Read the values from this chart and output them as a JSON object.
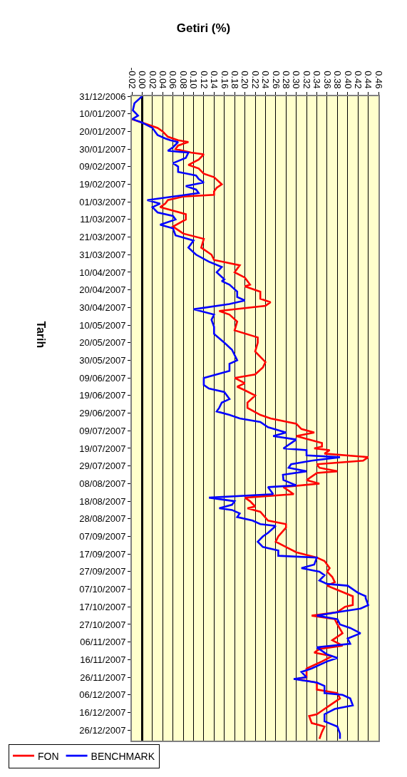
{
  "chart_data": {
    "type": "line",
    "title": "Getiri (%)",
    "ylabel": "Tarih",
    "orientation": "horizontal",
    "grid": "x",
    "legend": "bottom left",
    "marker": "none",
    "line_style": "solid",
    "xlim": [
      -0.02,
      0.46
    ],
    "xticks": [
      {
        "value": -0.02,
        "label": "-0.02"
      },
      {
        "value": 0,
        "label": "0.00"
      },
      {
        "value": 0.02,
        "label": "0.02"
      },
      {
        "value": 0.04,
        "label": "0.04"
      },
      {
        "value": 0.06,
        "label": "0.06"
      },
      {
        "value": 0.08,
        "label": "0.08"
      },
      {
        "value": 0.1,
        "label": "0.10"
      },
      {
        "value": 0.12,
        "label": "0.12"
      },
      {
        "value": 0.14,
        "label": "0.14"
      },
      {
        "value": 0.16,
        "label": "0.16"
      },
      {
        "value": 0.18,
        "label": "0.18"
      },
      {
        "value": 0.2,
        "label": "0.20"
      },
      {
        "value": 0.22,
        "label": "0.22"
      },
      {
        "value": 0.24,
        "label": "0.24"
      },
      {
        "value": 0.26,
        "label": "0.26"
      },
      {
        "value": 0.28,
        "label": "0.28"
      },
      {
        "value": 0.3,
        "label": "0.30"
      },
      {
        "value": 0.32,
        "label": "0.32"
      },
      {
        "value": 0.34,
        "label": "0.34"
      },
      {
        "value": 0.36,
        "label": "0.36"
      },
      {
        "value": 0.38,
        "label": "0.38"
      },
      {
        "value": 0.4,
        "label": "0.40"
      },
      {
        "value": 0.42,
        "label": "0.42"
      },
      {
        "value": 0.44,
        "label": "0.44"
      },
      {
        "value": 0.46,
        "label": "0.46"
      }
    ],
    "ylim": [
      "2008-01-01",
      "2006-12-31"
    ],
    "yticks": [
      {
        "value": "2006-12-31",
        "label": "31/12/2006"
      },
      {
        "value": "2007-01-10",
        "label": "10/01/2007"
      },
      {
        "value": "2007-01-20",
        "label": "20/01/2007"
      },
      {
        "value": "2007-01-30",
        "label": "30/01/2007"
      },
      {
        "value": "2007-02-09",
        "label": "09/02/2007"
      },
      {
        "value": "2007-02-19",
        "label": "19/02/2007"
      },
      {
        "value": "2007-03-01",
        "label": "01/03/2007"
      },
      {
        "value": "2007-03-11",
        "label": "11/03/2007"
      },
      {
        "value": "2007-03-21",
        "label": "21/03/2007"
      },
      {
        "value": "2007-03-31",
        "label": "31/03/2007"
      },
      {
        "value": "2007-04-10",
        "label": "10/04/2007"
      },
      {
        "value": "2007-04-20",
        "label": "20/04/2007"
      },
      {
        "value": "2007-04-30",
        "label": "30/04/2007"
      },
      {
        "value": "2007-05-10",
        "label": "10/05/2007"
      },
      {
        "value": "2007-05-20",
        "label": "20/05/2007"
      },
      {
        "value": "2007-05-30",
        "label": "30/05/2007"
      },
      {
        "value": "2007-06-09",
        "label": "09/06/2007"
      },
      {
        "value": "2007-06-19",
        "label": "19/06/2007"
      },
      {
        "value": "2007-06-29",
        "label": "29/06/2007"
      },
      {
        "value": "2007-07-09",
        "label": "09/07/2007"
      },
      {
        "value": "2007-07-19",
        "label": "19/07/2007"
      },
      {
        "value": "2007-07-29",
        "label": "29/07/2007"
      },
      {
        "value": "2007-08-08",
        "label": "08/08/2007"
      },
      {
        "value": "2007-08-18",
        "label": "18/08/2007"
      },
      {
        "value": "2007-08-28",
        "label": "28/08/2007"
      },
      {
        "value": "2007-09-07",
        "label": "07/09/2007"
      },
      {
        "value": "2007-09-17",
        "label": "17/09/2007"
      },
      {
        "value": "2007-09-27",
        "label": "27/09/2007"
      },
      {
        "value": "2007-10-07",
        "label": "07/10/2007"
      },
      {
        "value": "2007-10-17",
        "label": "17/10/2007"
      },
      {
        "value": "2007-10-27",
        "label": "27/10/2007"
      },
      {
        "value": "2007-11-06",
        "label": "06/11/2007"
      },
      {
        "value": "2007-11-16",
        "label": "16/11/2007"
      },
      {
        "value": "2007-11-26",
        "label": "26/11/2007"
      },
      {
        "value": "2007-12-06",
        "label": "06/12/2007"
      },
      {
        "value": "2007-12-16",
        "label": "16/12/2007"
      },
      {
        "value": "2007-12-26",
        "label": "26/12/2007"
      }
    ],
    "series": [
      {
        "name": "FON",
        "color": "#ff0000",
        "x": [
          "2007-01-13",
          "2007-01-15",
          "2007-01-18",
          "2007-01-20",
          "2007-01-23",
          "2007-01-25",
          "2007-01-26",
          "2007-01-28",
          "2007-01-30",
          "2007-02-01",
          "2007-02-02",
          "2007-02-05",
          "2007-02-08",
          "2007-02-10",
          "2007-02-13",
          "2007-02-15",
          "2007-02-19",
          "2007-02-21",
          "2007-02-23",
          "2007-02-25",
          "2007-02-26",
          "2007-02-28",
          "2007-03-02",
          "2007-03-04",
          "2007-03-06",
          "2007-03-08",
          "2007-03-11",
          "2007-03-15",
          "2007-03-19",
          "2007-03-22",
          "2007-03-27",
          "2007-03-31",
          "2007-04-03",
          "2007-04-06",
          "2007-04-10",
          "2007-04-13",
          "2007-04-17",
          "2007-04-18",
          "2007-04-21",
          "2007-04-25",
          "2007-04-27",
          "2007-04-29",
          "2007-05-02",
          "2007-05-04",
          "2007-05-08",
          "2007-05-13",
          "2007-05-17",
          "2007-05-20",
          "2007-05-25",
          "2007-05-31",
          "2007-06-03",
          "2007-06-07",
          "2007-06-09",
          "2007-06-12",
          "2007-06-14",
          "2007-06-16",
          "2007-06-19",
          "2007-06-23",
          "2007-06-26",
          "2007-06-30",
          "2007-07-02",
          "2007-07-05",
          "2007-07-08",
          "2007-07-10",
          "2007-07-12",
          "2007-07-16",
          "2007-07-18",
          "2007-07-19",
          "2007-07-20",
          "2007-07-22",
          "2007-07-24",
          "2007-07-26",
          "2007-07-28",
          "2007-07-30",
          "2007-08-01",
          "2007-08-02",
          "2007-08-06",
          "2007-08-08",
          "2007-08-10",
          "2007-08-14",
          "2007-08-16",
          "2007-08-18",
          "2007-08-21",
          "2007-08-22",
          "2007-08-24",
          "2007-08-29",
          "2007-08-31",
          "2007-09-02",
          "2007-09-07",
          "2007-09-10",
          "2007-09-13",
          "2007-09-16",
          "2007-09-19",
          "2007-09-21",
          "2007-09-25",
          "2007-09-27",
          "2007-09-30",
          "2007-10-03",
          "2007-10-05",
          "2007-10-08",
          "2007-10-11",
          "2007-10-12",
          "2007-10-16",
          "2007-10-17",
          "2007-10-20",
          "2007-10-22",
          "2007-10-24",
          "2007-10-27",
          "2007-11-01",
          "2007-11-05",
          "2007-11-08",
          "2007-11-10",
          "2007-11-12",
          "2007-11-14",
          "2007-11-17",
          "2007-11-21",
          "2007-11-23",
          "2007-11-26",
          "2007-11-27",
          "2007-11-29",
          "2007-12-03",
          "2007-12-05",
          "2007-12-08",
          "2007-12-12",
          "2007-12-15",
          "2007-12-17",
          "2007-12-18",
          "2007-12-22",
          "2007-12-24",
          "2007-12-27",
          "2007-12-31"
        ],
        "values": [
          -0.02,
          0.0,
          0.03,
          0.04,
          0.05,
          0.07,
          0.09,
          0.07,
          0.065,
          0.095,
          0.12,
          0.11,
          0.09,
          0.11,
          0.12,
          0.14,
          0.155,
          0.145,
          0.14,
          0.14,
          0.08,
          0.05,
          0.045,
          0.035,
          0.06,
          0.085,
          0.085,
          0.06,
          0.08,
          0.12,
          0.115,
          0.135,
          0.14,
          0.19,
          0.18,
          0.2,
          0.21,
          0.2,
          0.23,
          0.23,
          0.25,
          0.24,
          0.15,
          0.17,
          0.185,
          0.18,
          0.225,
          0.225,
          0.22,
          0.24,
          0.235,
          0.22,
          0.18,
          0.2,
          0.185,
          0.2,
          0.22,
          0.205,
          0.205,
          0.23,
          0.25,
          0.3,
          0.31,
          0.335,
          0.3,
          0.35,
          0.35,
          0.335,
          0.365,
          0.355,
          0.44,
          0.43,
          0.34,
          0.345,
          0.38,
          0.34,
          0.32,
          0.345,
          0.275,
          0.295,
          0.2,
          0.21,
          0.22,
          0.205,
          0.23,
          0.245,
          0.28,
          0.28,
          0.265,
          0.26,
          0.28,
          0.3,
          0.34,
          0.355,
          0.365,
          0.36,
          0.37,
          0.375,
          0.36,
          0.385,
          0.41,
          0.41,
          0.41,
          0.395,
          0.38,
          0.33,
          0.375,
          0.38,
          0.39,
          0.37,
          0.39,
          0.345,
          0.335,
          0.37,
          0.35,
          0.32,
          0.32,
          0.32,
          0.3,
          0.34,
          0.34,
          0.38,
          0.385,
          0.365,
          0.35,
          0.34,
          0.325,
          0.33,
          0.355,
          0.35,
          0.345
        ]
      },
      {
        "name": "BENCHMARK",
        "color": "#0000ff",
        "x": [
          "2006-12-31",
          "2007-01-04",
          "2007-01-08",
          "2007-01-11",
          "2007-01-13",
          "2007-01-15",
          "2007-01-18",
          "2007-01-20",
          "2007-01-22",
          "2007-01-24",
          "2007-01-25",
          "2007-01-26",
          "2007-01-29",
          "2007-01-31",
          "2007-02-01",
          "2007-02-04",
          "2007-02-07",
          "2007-02-09",
          "2007-02-12",
          "2007-02-14",
          "2007-02-16",
          "2007-02-18",
          "2007-02-20",
          "2007-02-22",
          "2007-02-24",
          "2007-02-26",
          "2007-02-28",
          "2007-03-02",
          "2007-03-04",
          "2007-03-07",
          "2007-03-09",
          "2007-03-11",
          "2007-03-14",
          "2007-03-16",
          "2007-03-20",
          "2007-03-23",
          "2007-03-27",
          "2007-03-31",
          "2007-04-04",
          "2007-04-07",
          "2007-04-10",
          "2007-04-14",
          "2007-04-15",
          "2007-04-17",
          "2007-04-21",
          "2007-04-24",
          "2007-04-26",
          "2007-04-28",
          "2007-05-01",
          "2007-05-04",
          "2007-05-07",
          "2007-05-11",
          "2007-05-15",
          "2007-05-20",
          "2007-05-24",
          "2007-05-30",
          "2007-06-01",
          "2007-06-05",
          "2007-06-09",
          "2007-06-13",
          "2007-06-15",
          "2007-06-17",
          "2007-06-21",
          "2007-06-23",
          "2007-06-26",
          "2007-06-28",
          "2007-06-30",
          "2007-07-02",
          "2007-07-04",
          "2007-07-07",
          "2007-07-10",
          "2007-07-12",
          "2007-07-14",
          "2007-07-19",
          "2007-07-20",
          "2007-07-23",
          "2007-07-24",
          "2007-07-26",
          "2007-07-28",
          "2007-07-30",
          "2007-08-01",
          "2007-08-03",
          "2007-08-06",
          "2007-08-09",
          "2007-08-10",
          "2007-08-14",
          "2007-08-16",
          "2007-08-18",
          "2007-08-20",
          "2007-08-22",
          "2007-08-23",
          "2007-08-25",
          "2007-08-27",
          "2007-08-29",
          "2007-08-31",
          "2007-09-01",
          "2007-09-05",
          "2007-09-07",
          "2007-09-10",
          "2007-09-13",
          "2007-09-15",
          "2007-09-18",
          "2007-09-19",
          "2007-09-23",
          "2007-09-25",
          "2007-09-27",
          "2007-09-29",
          "2007-10-02",
          "2007-10-04",
          "2007-10-05",
          "2007-10-09",
          "2007-10-11",
          "2007-10-12",
          "2007-10-16",
          "2007-10-18",
          "2007-10-20",
          "2007-10-22",
          "2007-10-24",
          "2007-10-27",
          "2007-10-29",
          "2007-11-01",
          "2007-11-04",
          "2007-11-07",
          "2007-11-09",
          "2007-11-13",
          "2007-11-15",
          "2007-11-17",
          "2007-11-21",
          "2007-11-23",
          "2007-11-26",
          "2007-11-27",
          "2007-11-29",
          "2007-12-01",
          "2007-12-05",
          "2007-12-06",
          "2007-12-08",
          "2007-12-12",
          "2007-12-14",
          "2007-12-17",
          "2007-12-21",
          "2007-12-24",
          "2007-12-28",
          "2007-12-31"
        ],
        "values": [
          0.0,
          -0.015,
          -0.018,
          -0.008,
          -0.019,
          0.0,
          0.02,
          0.025,
          0.03,
          0.045,
          0.055,
          0.07,
          0.06,
          0.05,
          0.09,
          0.085,
          0.06,
          0.07,
          0.07,
          0.105,
          0.11,
          0.12,
          0.085,
          0.105,
          0.11,
          0.06,
          0.01,
          0.035,
          0.02,
          0.03,
          0.06,
          0.065,
          0.035,
          0.06,
          0.065,
          0.1,
          0.09,
          0.105,
          0.13,
          0.155,
          0.145,
          0.16,
          0.155,
          0.17,
          0.185,
          0.185,
          0.2,
          0.17,
          0.1,
          0.14,
          0.135,
          0.14,
          0.14,
          0.16,
          0.175,
          0.185,
          0.17,
          0.17,
          0.12,
          0.12,
          0.13,
          0.16,
          0.17,
          0.155,
          0.15,
          0.145,
          0.17,
          0.19,
          0.23,
          0.245,
          0.28,
          0.255,
          0.3,
          0.275,
          0.32,
          0.32,
          0.385,
          0.33,
          0.29,
          0.285,
          0.32,
          0.274,
          0.275,
          0.3,
          0.245,
          0.255,
          0.13,
          0.18,
          0.175,
          0.15,
          0.175,
          0.19,
          0.185,
          0.215,
          0.23,
          0.26,
          0.245,
          0.235,
          0.225,
          0.235,
          0.265,
          0.265,
          0.34,
          0.335,
          0.31,
          0.345,
          0.355,
          0.345,
          0.36,
          0.4,
          0.42,
          0.435,
          0.435,
          0.44,
          0.425,
          0.38,
          0.34,
          0.38,
          0.385,
          0.405,
          0.425,
          0.4,
          0.405,
          0.34,
          0.36,
          0.38,
          0.36,
          0.33,
          0.31,
          0.32,
          0.295,
          0.34,
          0.355,
          0.355,
          0.39,
          0.405,
          0.41,
          0.375,
          0.355,
          0.355,
          0.38,
          0.385,
          0.385
        ]
      }
    ]
  }
}
